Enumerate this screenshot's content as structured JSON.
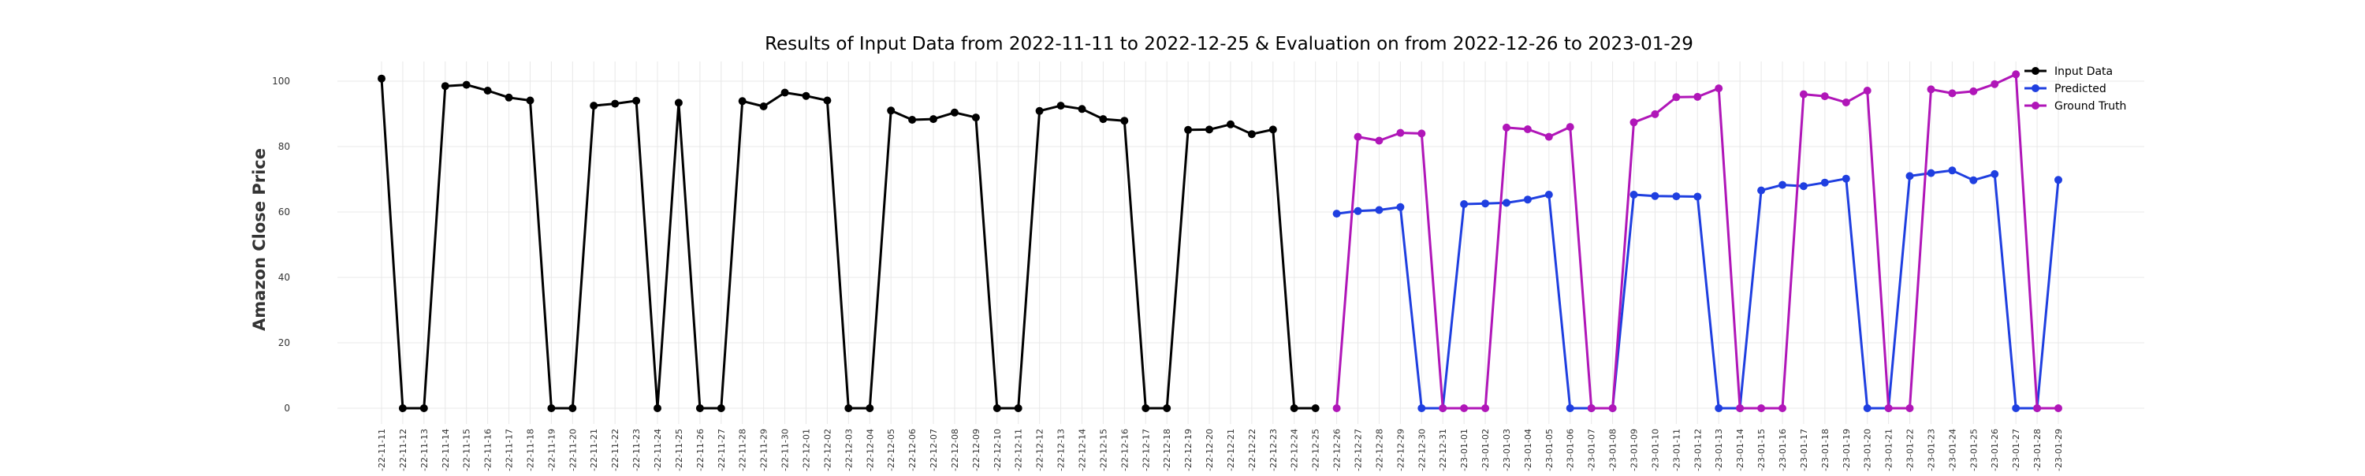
{
  "chart_data": {
    "type": "line",
    "title": "Results of Input Data from 2022-11-11 to 2022-12-25 & Evaluation on from 2022-12-26 to 2023-01-29",
    "xlabel": "",
    "ylabel": "Amazon Close Price",
    "ylim": [
      -5,
      107
    ],
    "yticks": [
      0,
      20,
      40,
      60,
      80,
      100
    ],
    "grid": true,
    "legend_position": "top-right",
    "dates": [
      "2022-11-11",
      "2022-11-12",
      "2022-11-13",
      "2022-11-14",
      "2022-11-15",
      "2022-11-16",
      "2022-11-17",
      "2022-11-18",
      "2022-11-19",
      "2022-11-20",
      "2022-11-21",
      "2022-11-22",
      "2022-11-23",
      "2022-11-24",
      "2022-11-25",
      "2022-11-26",
      "2022-11-27",
      "2022-11-28",
      "2022-11-29",
      "2022-11-30",
      "2022-12-01",
      "2022-12-02",
      "2022-12-03",
      "2022-12-04",
      "2022-12-05",
      "2022-12-06",
      "2022-12-07",
      "2022-12-08",
      "2022-12-09",
      "2022-12-10",
      "2022-12-11",
      "2022-12-12",
      "2022-12-13",
      "2022-12-14",
      "2022-12-15",
      "2022-12-16",
      "2022-12-17",
      "2022-12-18",
      "2022-12-19",
      "2022-12-20",
      "2022-12-21",
      "2022-12-22",
      "2022-12-23",
      "2022-12-24",
      "2022-12-25",
      "2022-12-26",
      "2022-12-27",
      "2022-12-28",
      "2022-12-29",
      "2022-12-30",
      "2022-12-31",
      "2023-01-01",
      "2023-01-02",
      "2023-01-03",
      "2023-01-04",
      "2023-01-05",
      "2023-01-06",
      "2023-01-07",
      "2023-01-08",
      "2023-01-09",
      "2023-01-10",
      "2023-01-11",
      "2023-01-12",
      "2023-01-13",
      "2023-01-14",
      "2023-01-15",
      "2023-01-16",
      "2023-01-17",
      "2023-01-18",
      "2023-01-19",
      "2023-01-20",
      "2023-01-21",
      "2023-01-22",
      "2023-01-23",
      "2023-01-24",
      "2023-01-25",
      "2023-01-26",
      "2023-01-27",
      "2023-01-28",
      "2023-01-29"
    ],
    "tick_labels": [
      "-22-11-11",
      "-22-11-12",
      "-22-11-13",
      "-22-11-14",
      "-22-11-15",
      "-22-11-16",
      "-22-11-17",
      "-22-11-18",
      "-22-11-19",
      "-22-11-20",
      "-22-11-21",
      "-22-11-22",
      "-22-11-23",
      "-22-11-24",
      "-22-11-25",
      "-22-11-26",
      "-22-11-27",
      "-22-11-28",
      "-22-11-29",
      "-22-11-30",
      "-22-12-01",
      "-22-12-02",
      "-22-12-03",
      "-22-12-04",
      "-22-12-05",
      "-22-12-06",
      "-22-12-07",
      "-22-12-08",
      "-22-12-09",
      "-22-12-10",
      "-22-12-11",
      "-22-12-12",
      "-22-12-13",
      "-22-12-14",
      "-22-12-15",
      "-22-12-16",
      "-22-12-17",
      "-22-12-18",
      "-22-12-19",
      "-22-12-20",
      "-22-12-21",
      "-22-12-22",
      "-22-12-23",
      "-22-12-24",
      "-22-12-25",
      "-22-12-26",
      "-22-12-27",
      "-22-12-28",
      "-22-12-29",
      "-22-12-30",
      "-22-12-31",
      "-23-01-01",
      "-23-01-02",
      "-23-01-03",
      "-23-01-04",
      "-23-01-05",
      "-23-01-06",
      "-23-01-07",
      "-23-01-08",
      "-23-01-09",
      "-23-01-10",
      "-23-01-11",
      "-23-01-12",
      "-23-01-13",
      "-23-01-14",
      "-23-01-15",
      "-23-01-16",
      "-23-01-17",
      "-23-01-18",
      "-23-01-19",
      "-23-01-20",
      "-23-01-21",
      "-23-01-22",
      "-23-01-23",
      "-23-01-24",
      "-23-01-25",
      "-23-01-26",
      "-23-01-27",
      "-23-01-28",
      "-23-01-29"
    ],
    "series": [
      {
        "name": "Input Data",
        "color": "#000000",
        "x": [
          "2022-11-11",
          "2022-11-12",
          "2022-11-13",
          "2022-11-14",
          "2022-11-15",
          "2022-11-16",
          "2022-11-17",
          "2022-11-18",
          "2022-11-19",
          "2022-11-20",
          "2022-11-21",
          "2022-11-22",
          "2022-11-23",
          "2022-11-24",
          "2022-11-25",
          "2022-11-26",
          "2022-11-27",
          "2022-11-28",
          "2022-11-29",
          "2022-11-30",
          "2022-12-01",
          "2022-12-02",
          "2022-12-03",
          "2022-12-04",
          "2022-12-05",
          "2022-12-06",
          "2022-12-07",
          "2022-12-08",
          "2022-12-09",
          "2022-12-10",
          "2022-12-11",
          "2022-12-12",
          "2022-12-13",
          "2022-12-14",
          "2022-12-15",
          "2022-12-16",
          "2022-12-17",
          "2022-12-18",
          "2022-12-19",
          "2022-12-20",
          "2022-12-21",
          "2022-12-22",
          "2022-12-23",
          "2022-12-24",
          "2022-12-25"
        ],
        "values": [
          100.8,
          0,
          0,
          98.5,
          98.9,
          97.1,
          95.0,
          94.1,
          0,
          0,
          92.5,
          93.1,
          94.0,
          0,
          93.4,
          0,
          0,
          93.9,
          92.3,
          96.5,
          95.5,
          94.1,
          0,
          0,
          91.0,
          88.2,
          88.4,
          90.4,
          88.9,
          0,
          0,
          90.9,
          92.5,
          91.5,
          88.4,
          87.9,
          0,
          0,
          85.1,
          85.2,
          86.8,
          83.8,
          85.2,
          0,
          0
        ]
      },
      {
        "name": "Predicted",
        "color": "#1f3fe0",
        "x": [
          "2022-12-26",
          "2022-12-27",
          "2022-12-28",
          "2022-12-29",
          "2022-12-30",
          "2022-12-31",
          "2023-01-01",
          "2023-01-02",
          "2023-01-03",
          "2023-01-04",
          "2023-01-05",
          "2023-01-06",
          "2023-01-07",
          "2023-01-08",
          "2023-01-09",
          "2023-01-10",
          "2023-01-11",
          "2023-01-12",
          "2023-01-13",
          "2023-01-14",
          "2023-01-15",
          "2023-01-16",
          "2023-01-17",
          "2023-01-18",
          "2023-01-19",
          "2023-01-20",
          "2023-01-21",
          "2023-01-22",
          "2023-01-23",
          "2023-01-24",
          "2023-01-25",
          "2023-01-26",
          "2023-01-27",
          "2023-01-28",
          "2023-01-29"
        ],
        "values": [
          59.5,
          60.3,
          60.6,
          61.5,
          0,
          0,
          62.4,
          62.6,
          62.8,
          63.8,
          65.3,
          0,
          0,
          0,
          65.3,
          64.9,
          64.8,
          64.7,
          0,
          0,
          66.6,
          68.3,
          67.9,
          69.0,
          70.2,
          0,
          0,
          71.0,
          71.9,
          72.7,
          69.7,
          71.6,
          0,
          0,
          69.8
        ]
      },
      {
        "name": "Ground Truth",
        "color": "#b016b8",
        "x": [
          "2022-12-26",
          "2022-12-27",
          "2022-12-28",
          "2022-12-29",
          "2022-12-30",
          "2022-12-31",
          "2023-01-01",
          "2023-01-02",
          "2023-01-03",
          "2023-01-04",
          "2023-01-05",
          "2023-01-06",
          "2023-01-07",
          "2023-01-08",
          "2023-01-09",
          "2023-01-10",
          "2023-01-11",
          "2023-01-12",
          "2023-01-13",
          "2023-01-14",
          "2023-01-15",
          "2023-01-16",
          "2023-01-17",
          "2023-01-18",
          "2023-01-19",
          "2023-01-20",
          "2023-01-21",
          "2023-01-22",
          "2023-01-23",
          "2023-01-24",
          "2023-01-25",
          "2023-01-26",
          "2023-01-27",
          "2023-01-28",
          "2023-01-29"
        ],
        "values": [
          0,
          83.0,
          81.8,
          84.2,
          84.0,
          0,
          0,
          0,
          85.8,
          85.3,
          83.0,
          86.0,
          0,
          0,
          87.4,
          89.9,
          95.1,
          95.2,
          97.8,
          0,
          0,
          0,
          96.0,
          95.4,
          93.5,
          97.1,
          0,
          0,
          97.5,
          96.3,
          96.9,
          99.1,
          102.1,
          0,
          0
        ]
      }
    ]
  }
}
